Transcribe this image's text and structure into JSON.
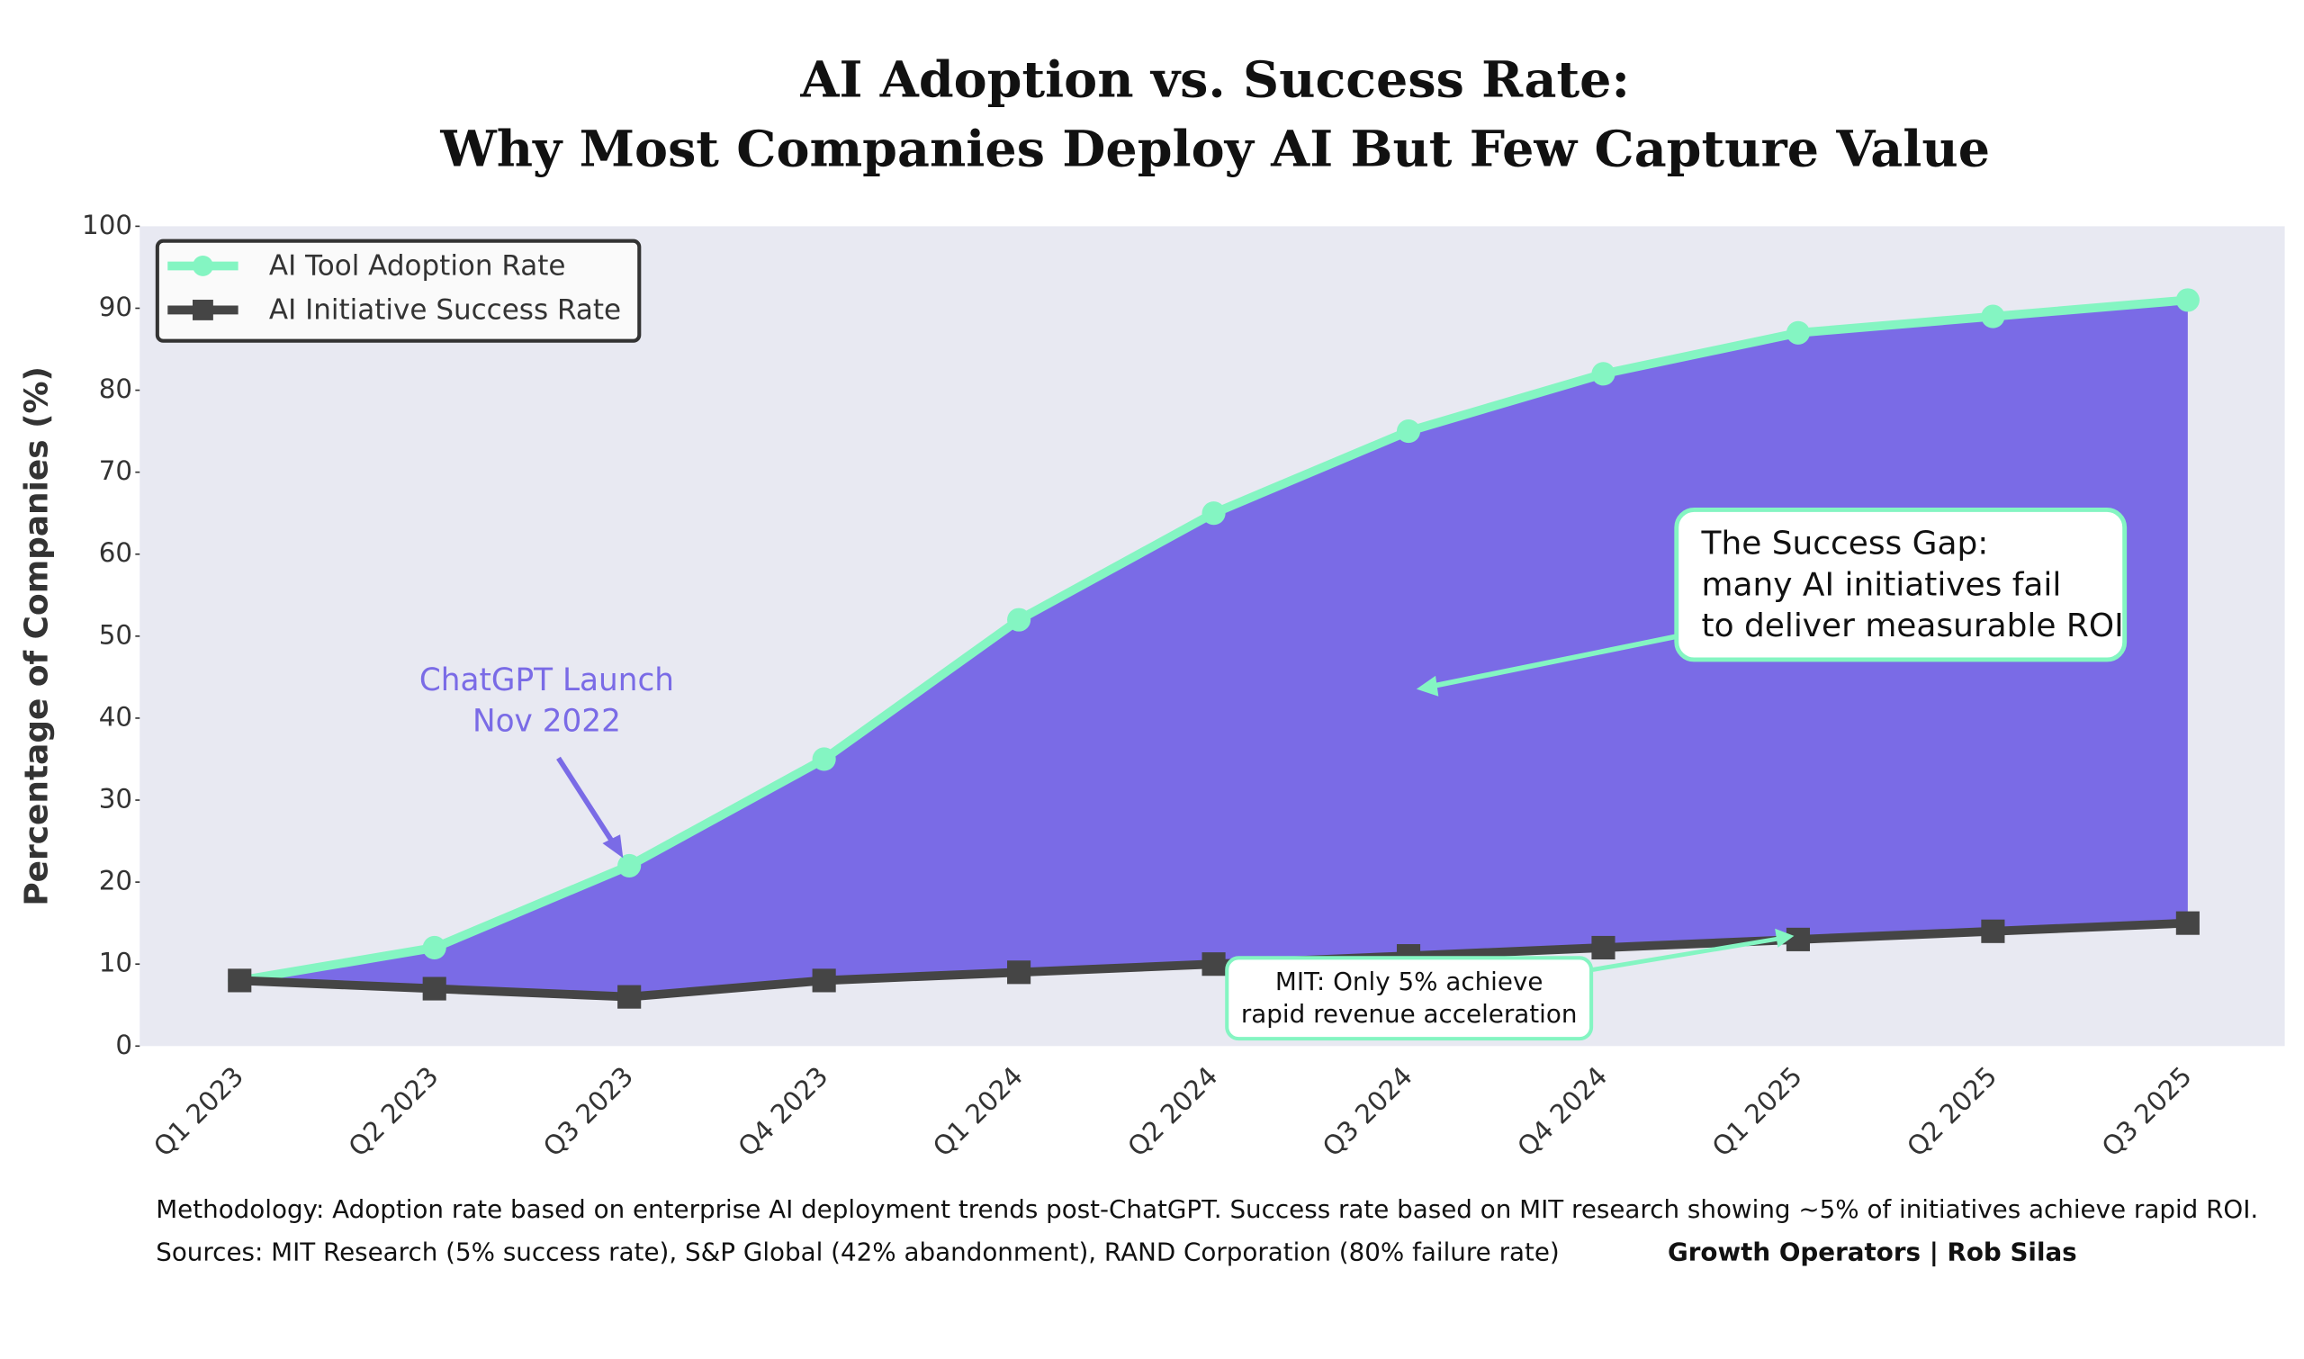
{
  "chart_data": {
    "type": "line",
    "title": [
      "AI Adoption vs. Success Rate:",
      "Why Most Companies Deploy AI But Few Capture Value"
    ],
    "ylabel": "Percentage of Companies (%)",
    "categories": [
      "Q1 2023",
      "Q2 2023",
      "Q3 2023",
      "Q4 2023",
      "Q1 2024",
      "Q2 2024",
      "Q3 2024",
      "Q4 2024",
      "Q1 2025",
      "Q2 2025",
      "Q3 2025"
    ],
    "series": [
      {
        "name": "AI Tool Adoption Rate",
        "color": "#84f5c2",
        "marker": "circle",
        "values": [
          8,
          12,
          22,
          35,
          52,
          65,
          75,
          82,
          87,
          89,
          91
        ]
      },
      {
        "name": "AI Initiative Success Rate",
        "color": "#454545",
        "marker": "square",
        "values": [
          8,
          7,
          6,
          8,
          9,
          10,
          11,
          12,
          13,
          14,
          15
        ]
      }
    ],
    "fill_between_color": "#7a6be6",
    "ylim": [
      0,
      100
    ],
    "yticks": [
      0,
      10,
      20,
      30,
      40,
      50,
      60,
      70,
      80,
      90,
      100
    ],
    "legend": "upper left",
    "annotations": [
      {
        "text": [
          "ChatGPT Launch",
          "Nov 2022"
        ]
      },
      {
        "text": [
          "The Success Gap:",
          "many AI initiatives fail",
          "to deliver measurable ROI"
        ]
      },
      {
        "text": [
          "MIT: Only 5% achieve",
          "rapid revenue acceleration"
        ]
      }
    ],
    "footer": {
      "methodology": "Methodology: Adoption rate based on enterprise AI deployment trends post-ChatGPT. Success rate based on MIT research showing ~5% of initiatives achieve rapid ROI.",
      "sources": "Sources: MIT Research (5% success rate), S&P Global (42% abandonment), RAND Corporation (80% failure rate)",
      "credit": "Growth Operators | Rob Silas"
    }
  }
}
